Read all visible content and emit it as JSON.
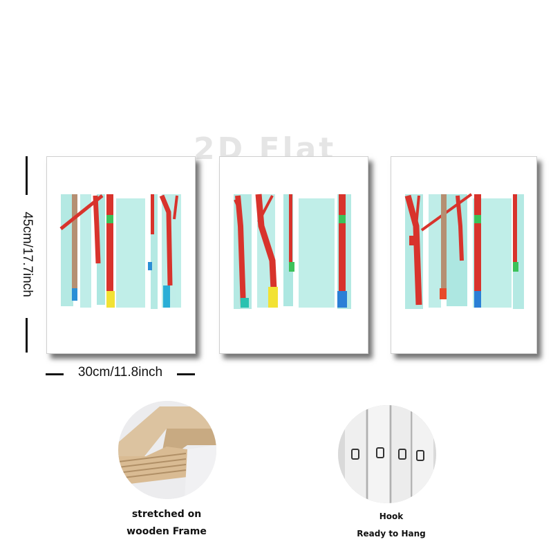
{
  "watermark": "2D Flat",
  "dimensions": {
    "height_label": "45cm/17.7inch",
    "width_label": "30cm/11.8inch"
  },
  "features": [
    {
      "lines": [
        "stretched on",
        "wooden Frame"
      ],
      "image": "wooden-frame-photo"
    },
    {
      "lines": [
        "Hook",
        "Ready to Hang"
      ],
      "image": "hook-photo"
    }
  ],
  "colors": {
    "aqua": "#9fe3dc",
    "red": "#d8332c",
    "brown": "#b58f72",
    "yellow": "#f2e234",
    "blue": "#2a8fd6",
    "green": "#3cc25a"
  }
}
